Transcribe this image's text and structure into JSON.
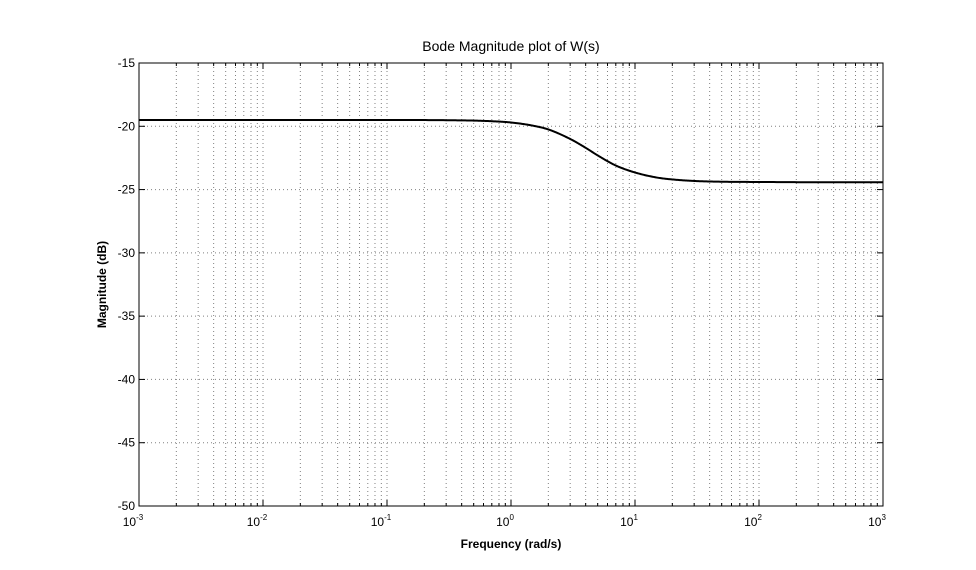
{
  "chart_data": {
    "type": "line",
    "title": "Bode Magnitude plot of W(s)",
    "xlabel": "Frequency  (rad/s)",
    "ylabel": "Magnitude (dB)",
    "xscale": "log",
    "xlim": [
      0.001,
      1000
    ],
    "ylim": [
      -50,
      -15
    ],
    "grid": true,
    "x_ticks": [
      "10^-3",
      "10^-2",
      "10^-1",
      "10^0",
      "10^1",
      "10^2",
      "10^3"
    ],
    "y_ticks": [
      "-15",
      "-20",
      "-25",
      "-30",
      "-35",
      "-40",
      "-45",
      "-50"
    ],
    "series": [
      {
        "color": "#000000",
        "x": [
          0.001,
          0.01,
          0.1,
          0.3,
          0.5,
          0.7,
          1,
          1.5,
          2,
          3,
          4,
          5,
          7,
          10,
          15,
          20,
          30,
          50,
          100,
          300,
          1000
        ],
        "y": [
          -19.5,
          -19.5,
          -19.5,
          -19.52,
          -19.55,
          -19.6,
          -19.7,
          -19.95,
          -20.25,
          -21.0,
          -21.7,
          -22.3,
          -23.1,
          -23.65,
          -24.05,
          -24.2,
          -24.32,
          -24.38,
          -24.4,
          -24.42,
          -24.42
        ]
      }
    ]
  },
  "colors": {
    "background": "#ffffff",
    "grid": "#808080",
    "axis": "#000000",
    "line": "#000000"
  }
}
